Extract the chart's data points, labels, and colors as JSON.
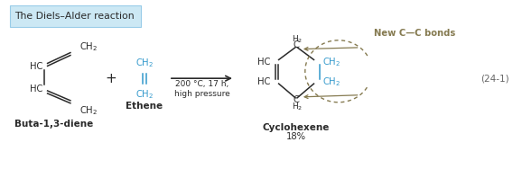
{
  "title_text": "The Diels–Alder reaction",
  "title_bg": "#cce8f4",
  "title_border": "#99cce8",
  "black": "#2a2a2a",
  "blue": "#3399cc",
  "olive": "#857a50",
  "label_buta": "Buta-1,3-diene",
  "label_ethene": "Ethene",
  "label_cyclo": "Cyclohexene",
  "label_yield": "18%",
  "condition": "200 °C, 17 h,\nhigh pressure",
  "new_c_bonds": "New C—C bonds",
  "equation_num": "(24-1)"
}
